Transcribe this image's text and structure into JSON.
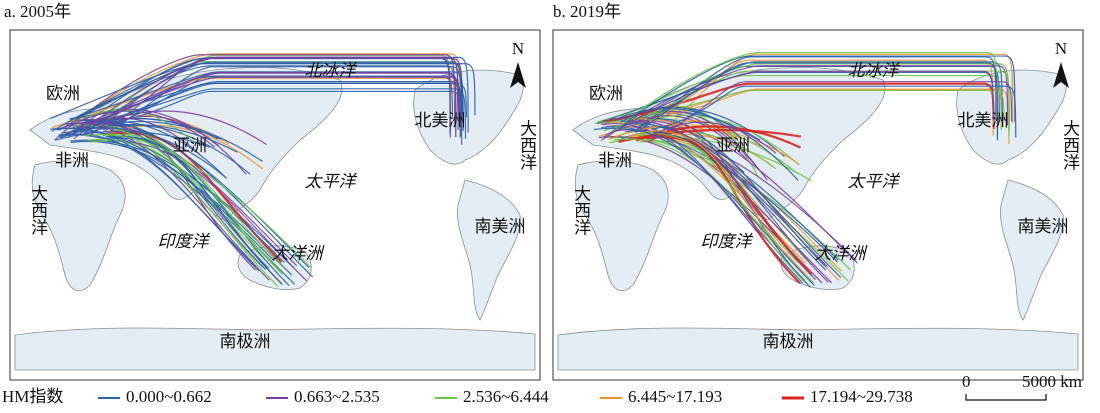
{
  "panels": [
    {
      "title": "a. 2005年",
      "labels": [
        "欧洲",
        "非洲",
        "亚洲",
        "北冰洋",
        "北美洲",
        "太平洋",
        "大西洋",
        "大西洋",
        "印度洋",
        "大洋洲",
        "南美洲",
        "南极洲"
      ],
      "north": "N"
    },
    {
      "title": "b. 2019年",
      "labels": [
        "欧洲",
        "非洲",
        "亚洲",
        "北冰洋",
        "北美洲",
        "太平洋",
        "大西洋",
        "大西洋",
        "印度洋",
        "大洋洲",
        "南美洲",
        "南极洲"
      ],
      "north": "N"
    }
  ],
  "legend": {
    "title": "HM指数",
    "items": [
      {
        "label": "0.000~0.662",
        "color": "#2b5fa8"
      },
      {
        "label": "0.663~2.535",
        "color": "#7a3fa0"
      },
      {
        "label": "2.536~6.444",
        "color": "#6cc644"
      },
      {
        "label": "6.445~17.193",
        "color": "#f0922c"
      },
      {
        "label": "17.194~29.738",
        "color": "#d8231f"
      }
    ]
  },
  "scale_bar": {
    "start": "0",
    "end": "5000 km"
  }
}
